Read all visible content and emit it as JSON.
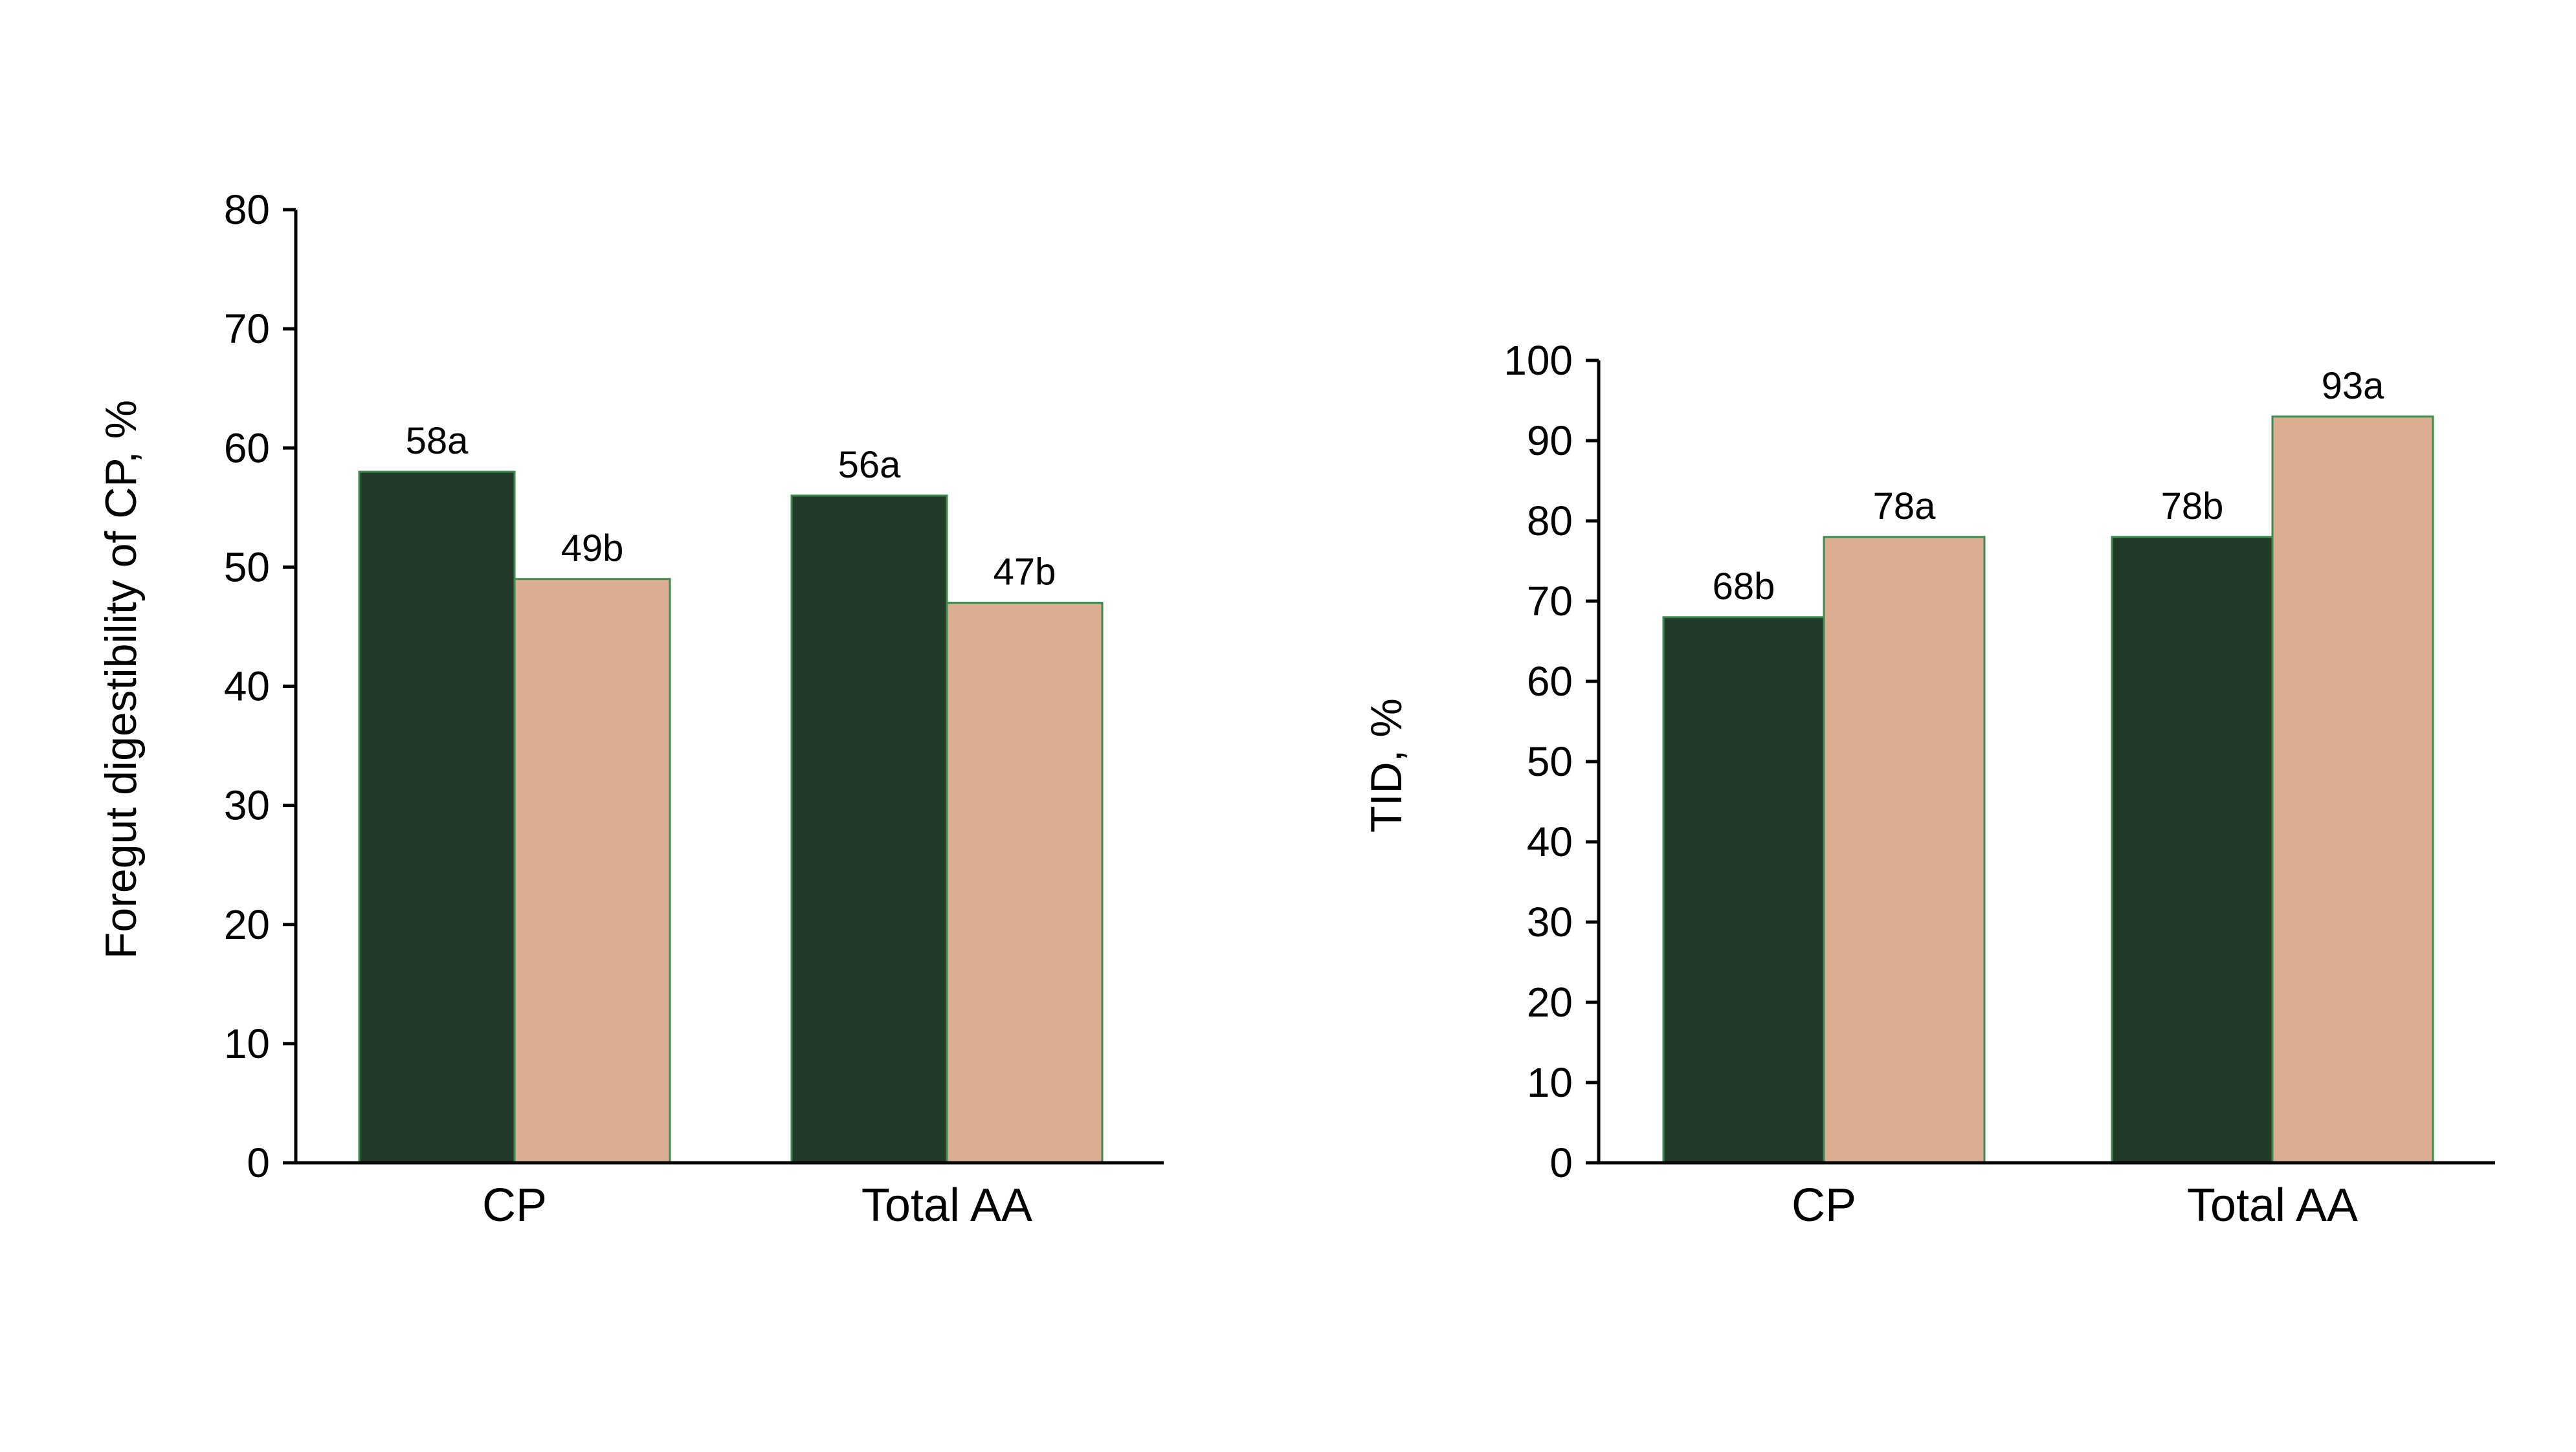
{
  "chart_data": [
    {
      "type": "bar",
      "title": "",
      "xlabel": "",
      "ylabel": "Foregut digestibility of CP, %",
      "ylim": [
        0,
        80
      ],
      "yticks": [
        "0",
        "10",
        "20",
        "30",
        "40",
        "50",
        "60",
        "70",
        "80"
      ],
      "categories": [
        "CP",
        "Total AA"
      ],
      "series": [
        {
          "color": "#233a2b",
          "values": [
            58,
            56
          ],
          "labels": [
            "58a",
            "56a"
          ]
        },
        {
          "color": "#dcae91",
          "values": [
            49,
            47
          ],
          "labels": [
            "49b",
            "47b"
          ]
        }
      ],
      "grid": false,
      "legend": "none"
    },
    {
      "type": "bar",
      "title": "",
      "xlabel": "",
      "ylabel": "TID, %",
      "ylim": [
        0,
        100
      ],
      "yticks": [
        "0",
        "10",
        "20",
        "30",
        "40",
        "50",
        "60",
        "70",
        "80",
        "90",
        "100"
      ],
      "categories": [
        "CP",
        "Total AA"
      ],
      "series": [
        {
          "color": "#233a2b",
          "values": [
            68,
            78
          ],
          "labels": [
            "68b",
            "78b"
          ]
        },
        {
          "color": "#dcae91",
          "values": [
            78,
            93
          ],
          "labels": [
            "78a",
            "93a"
          ]
        }
      ],
      "grid": false,
      "legend": "none"
    }
  ]
}
